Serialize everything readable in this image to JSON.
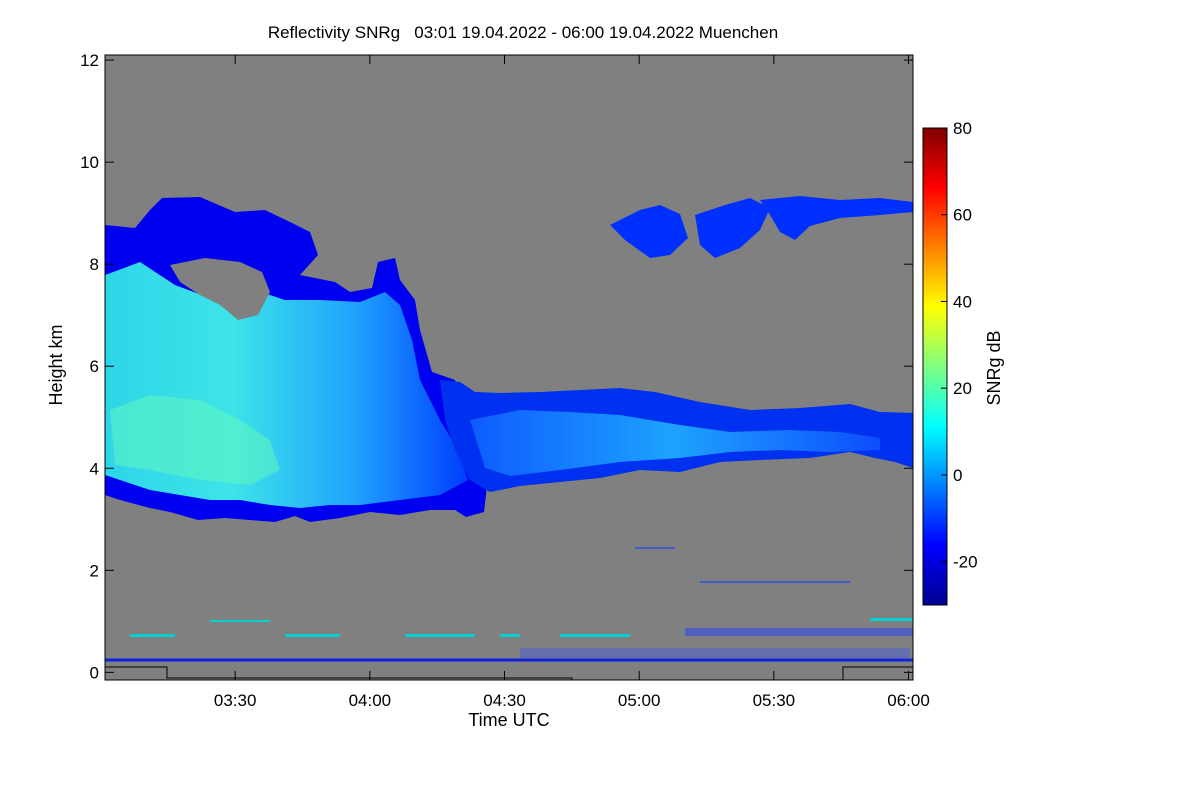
{
  "chart_data": {
    "type": "heatmap",
    "title": "Reflectivity SNRg   03:01 19.04.2022 - 06:00 19.04.2022 Muenchen",
    "xlabel": "Time UTC",
    "ylabel": "Height km",
    "x_ticks": [
      "03:30",
      "04:00",
      "04:30",
      "05:00",
      "05:30",
      "06:00"
    ],
    "x_tick_values_min": [
      210,
      240,
      270,
      300,
      330,
      360
    ],
    "xlim_min": [
      181,
      361
    ],
    "y_ticks": [
      "0",
      "2",
      "4",
      "6",
      "8",
      "10",
      "12"
    ],
    "y_tick_values": [
      0,
      2,
      4,
      6,
      8,
      10,
      12
    ],
    "ylim": [
      -0.15,
      12.1
    ],
    "no_data_color": "#808080",
    "colorbar": {
      "label": "SNRg dB",
      "ticks": [
        "80",
        "60",
        "40",
        "20",
        "0",
        "-20"
      ],
      "tick_values": [
        80,
        60,
        40,
        20,
        0,
        -20
      ],
      "range": [
        -30,
        80
      ],
      "stops": [
        "#00008f",
        "#0000ff",
        "#0080ff",
        "#00ffff",
        "#80ff80",
        "#ffff00",
        "#ff8000",
        "#ff0000",
        "#800000"
      ]
    },
    "features": [
      {
        "name": "main-cloud-body",
        "time_min": [
          181,
          272
        ],
        "height_km": [
          3.0,
          9.2
        ],
        "snr_db_range": [
          -20,
          15
        ]
      },
      {
        "name": "cloud-layer",
        "time_min": [
          262,
          361
        ],
        "height_km": [
          3.8,
          5.7
        ],
        "snr_db_range": [
          -20,
          5
        ]
      },
      {
        "name": "upper-cirrus",
        "time_min": [
          290,
          361
        ],
        "height_km": [
          8.0,
          9.3
        ],
        "snr_db_range": [
          -25,
          -15
        ]
      },
      {
        "name": "low-level-line",
        "time_min": [
          181,
          361
        ],
        "height_km": [
          0.3,
          0.3
        ],
        "snr_db_range": [
          -20,
          -20
        ]
      }
    ]
  }
}
